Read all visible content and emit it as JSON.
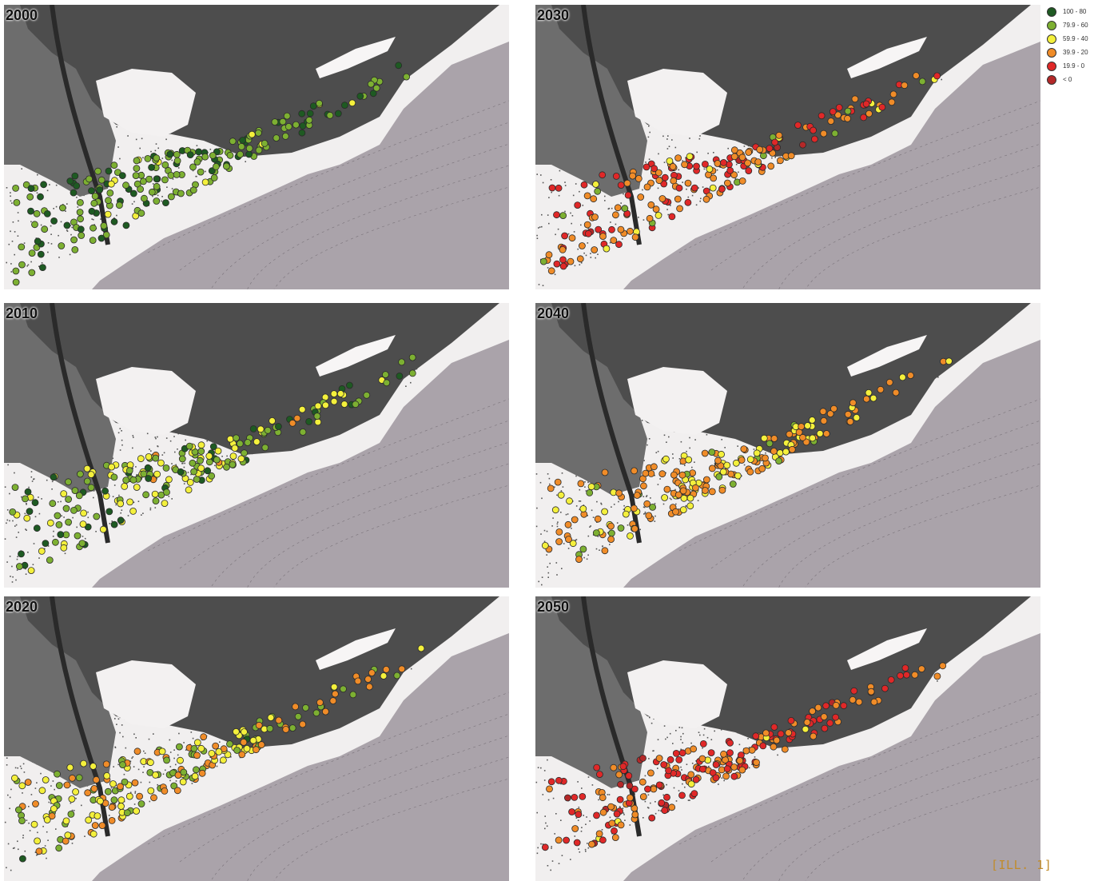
{
  "panels": [
    {
      "year": "2000",
      "scheme": [
        0.3,
        0.62,
        0.08,
        0,
        0,
        0
      ]
    },
    {
      "year": "2030",
      "scheme": [
        0,
        0.03,
        0.08,
        0.45,
        0.4,
        0.04
      ]
    },
    {
      "year": "2010",
      "scheme": [
        0.16,
        0.4,
        0.41,
        0.03,
        0,
        0
      ]
    },
    {
      "year": "2040",
      "scheme": [
        0,
        0.1,
        0.3,
        0.6,
        0,
        0
      ]
    },
    {
      "year": "2020",
      "scheme": [
        0.04,
        0.28,
        0.38,
        0.3,
        0,
        0
      ]
    },
    {
      "year": "2050",
      "scheme": [
        0,
        0,
        0.04,
        0.4,
        0.5,
        0.06
      ]
    }
  ],
  "legend": [
    {
      "label": "100 - 80",
      "color": "#1e5a22"
    },
    {
      "label": "79.9 - 60",
      "color": "#7db032"
    },
    {
      "label": "59.9 - 40",
      "color": "#f4f03c"
    },
    {
      "label": "39.9 - 20",
      "color": "#f08c28"
    },
    {
      "label": "19.9 - 0",
      "color": "#e02828"
    },
    {
      "label": "< 0",
      "color": "#b42828"
    }
  ],
  "illustration_tag": "[ILL. 1]"
}
